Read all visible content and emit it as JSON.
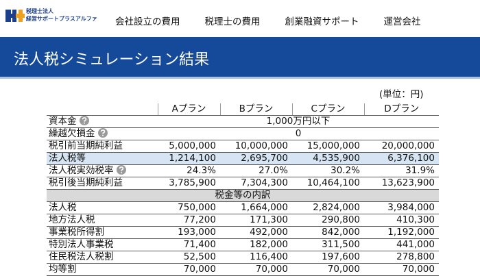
{
  "header": {
    "logo": {
      "line1": "税理士法人",
      "line2": "経営サポートプラスアルファ"
    },
    "nav": [
      "会社設立の費用",
      "税理士の費用",
      "創業融資サポート",
      "運営会社"
    ]
  },
  "page_title": "法人税シミュレーション結果",
  "unit": "(単位：円)",
  "table": {
    "columns": [
      "Aプラン",
      "Bプラン",
      "Cプラン",
      "Dプラン"
    ],
    "rows": [
      {
        "label": "資本金",
        "help": true,
        "merged": "1,000万円以下"
      },
      {
        "label": "繰越欠損金",
        "help": true,
        "merged": "0"
      },
      {
        "label": "税引前当期純利益",
        "values": [
          "5,000,000",
          "10,000,000",
          "15,000,000",
          "20,000,000"
        ]
      },
      {
        "label": "法人税等",
        "highlight": true,
        "values": [
          "1,214,100",
          "2,695,700",
          "4,535,900",
          "6,376,100"
        ]
      },
      {
        "label": "法人税実効税率",
        "help": true,
        "values": [
          "24.3%",
          "27.0%",
          "30.2%",
          "31.9%"
        ]
      },
      {
        "label": "税引後当期純利益",
        "values": [
          "3,785,900",
          "7,304,300",
          "10,464,100",
          "13,623,900"
        ]
      }
    ],
    "section": "税金等の内訳",
    "breakdown": [
      {
        "label": "法人税",
        "values": [
          "750,000",
          "1,664,000",
          "2,824,000",
          "3,984,000"
        ]
      },
      {
        "label": "地方法人税",
        "values": [
          "77,200",
          "171,300",
          "290,800",
          "410,300"
        ]
      },
      {
        "label": "事業税所得割",
        "values": [
          "193,000",
          "492,000",
          "842,000",
          "1,192,000"
        ]
      },
      {
        "label": "特別法人事業税",
        "values": [
          "71,400",
          "182,000",
          "311,500",
          "441,000"
        ]
      },
      {
        "label": "住民税法人税割",
        "values": [
          "52,500",
          "116,400",
          "197,600",
          "278,800"
        ]
      },
      {
        "label": "均等割",
        "values": [
          "70,000",
          "70,000",
          "70,000",
          "70,000"
        ]
      }
    ]
  }
}
